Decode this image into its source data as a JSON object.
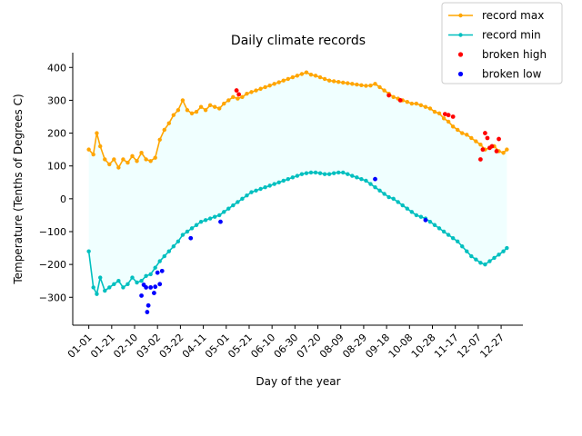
{
  "chart_data": {
    "type": "line",
    "title": "Daily climate records",
    "xlabel": "Day of the year",
    "ylabel": "Temperature (Tenths of Degrees C)",
    "xlim": [
      -14,
      379
    ],
    "ylim": [
      -385,
      445
    ],
    "y_ticks": [
      -300,
      -200,
      -100,
      0,
      100,
      200,
      300,
      400
    ],
    "x_ticks": [
      {
        "day": 0,
        "label": "01-01"
      },
      {
        "day": 20,
        "label": "01-21"
      },
      {
        "day": 40,
        "label": "02-10"
      },
      {
        "day": 60,
        "label": "03-02"
      },
      {
        "day": 80,
        "label": "03-22"
      },
      {
        "day": 100,
        "label": "04-11"
      },
      {
        "day": 120,
        "label": "05-01"
      },
      {
        "day": 140,
        "label": "05-21"
      },
      {
        "day": 160,
        "label": "06-10"
      },
      {
        "day": 180,
        "label": "06-30"
      },
      {
        "day": 200,
        "label": "07-20"
      },
      {
        "day": 220,
        "label": "08-09"
      },
      {
        "day": 240,
        "label": "08-29"
      },
      {
        "day": 260,
        "label": "09-18"
      },
      {
        "day": 280,
        "label": "10-08"
      },
      {
        "day": 300,
        "label": "10-28"
      },
      {
        "day": 320,
        "label": "11-17"
      },
      {
        "day": 340,
        "label": "12-07"
      },
      {
        "day": 360,
        "label": "12-27"
      }
    ],
    "legend_position": "top-right",
    "grid": false,
    "fill_between": {
      "color": "#f0ffff"
    },
    "series": [
      {
        "name": "record max",
        "color": "#ffa500",
        "kind": "line",
        "points": [
          [
            0,
            150
          ],
          [
            4,
            135
          ],
          [
            7,
            200
          ],
          [
            10,
            160
          ],
          [
            14,
            120
          ],
          [
            18,
            105
          ],
          [
            22,
            120
          ],
          [
            26,
            95
          ],
          [
            30,
            120
          ],
          [
            34,
            110
          ],
          [
            38,
            130
          ],
          [
            42,
            115
          ],
          [
            46,
            140
          ],
          [
            50,
            120
          ],
          [
            54,
            115
          ],
          [
            58,
            125
          ],
          [
            62,
            180
          ],
          [
            66,
            210
          ],
          [
            70,
            230
          ],
          [
            74,
            255
          ],
          [
            78,
            270
          ],
          [
            82,
            300
          ],
          [
            86,
            270
          ],
          [
            90,
            260
          ],
          [
            94,
            265
          ],
          [
            98,
            280
          ],
          [
            102,
            270
          ],
          [
            106,
            285
          ],
          [
            110,
            280
          ],
          [
            114,
            275
          ],
          [
            118,
            290
          ],
          [
            122,
            300
          ],
          [
            126,
            310
          ],
          [
            130,
            305
          ],
          [
            134,
            310
          ],
          [
            138,
            320
          ],
          [
            142,
            325
          ],
          [
            146,
            330
          ],
          [
            150,
            335
          ],
          [
            154,
            340
          ],
          [
            158,
            345
          ],
          [
            162,
            350
          ],
          [
            166,
            355
          ],
          [
            170,
            360
          ],
          [
            174,
            365
          ],
          [
            178,
            370
          ],
          [
            182,
            375
          ],
          [
            186,
            380
          ],
          [
            190,
            385
          ],
          [
            194,
            378
          ],
          [
            198,
            375
          ],
          [
            202,
            370
          ],
          [
            206,
            365
          ],
          [
            210,
            360
          ],
          [
            214,
            358
          ],
          [
            218,
            356
          ],
          [
            222,
            354
          ],
          [
            226,
            352
          ],
          [
            230,
            350
          ],
          [
            234,
            348
          ],
          [
            238,
            346
          ],
          [
            242,
            344
          ],
          [
            246,
            345
          ],
          [
            250,
            350
          ],
          [
            254,
            340
          ],
          [
            258,
            330
          ],
          [
            262,
            320
          ],
          [
            266,
            310
          ],
          [
            270,
            305
          ],
          [
            274,
            300
          ],
          [
            278,
            295
          ],
          [
            282,
            290
          ],
          [
            286,
            290
          ],
          [
            290,
            285
          ],
          [
            294,
            280
          ],
          [
            298,
            275
          ],
          [
            302,
            265
          ],
          [
            306,
            260
          ],
          [
            310,
            245
          ],
          [
            314,
            235
          ],
          [
            318,
            220
          ],
          [
            322,
            210
          ],
          [
            326,
            200
          ],
          [
            330,
            195
          ],
          [
            334,
            185
          ],
          [
            338,
            175
          ],
          [
            342,
            165
          ],
          [
            346,
            150
          ],
          [
            350,
            155
          ],
          [
            354,
            160
          ],
          [
            358,
            145
          ],
          [
            362,
            140
          ],
          [
            365,
            150
          ]
        ]
      },
      {
        "name": "record min",
        "color": "#00bfbf",
        "kind": "line",
        "points": [
          [
            0,
            -160
          ],
          [
            4,
            -270
          ],
          [
            7,
            -290
          ],
          [
            10,
            -240
          ],
          [
            14,
            -280
          ],
          [
            18,
            -270
          ],
          [
            22,
            -260
          ],
          [
            26,
            -250
          ],
          [
            30,
            -270
          ],
          [
            34,
            -260
          ],
          [
            38,
            -240
          ],
          [
            42,
            -255
          ],
          [
            46,
            -250
          ],
          [
            50,
            -235
          ],
          [
            54,
            -230
          ],
          [
            58,
            -210
          ],
          [
            62,
            -190
          ],
          [
            66,
            -175
          ],
          [
            70,
            -160
          ],
          [
            74,
            -145
          ],
          [
            78,
            -130
          ],
          [
            82,
            -110
          ],
          [
            86,
            -100
          ],
          [
            90,
            -90
          ],
          [
            94,
            -80
          ],
          [
            98,
            -70
          ],
          [
            102,
            -65
          ],
          [
            106,
            -60
          ],
          [
            110,
            -55
          ],
          [
            114,
            -50
          ],
          [
            118,
            -40
          ],
          [
            122,
            -30
          ],
          [
            126,
            -20
          ],
          [
            130,
            -10
          ],
          [
            134,
            0
          ],
          [
            138,
            10
          ],
          [
            142,
            20
          ],
          [
            146,
            25
          ],
          [
            150,
            30
          ],
          [
            154,
            35
          ],
          [
            158,
            40
          ],
          [
            162,
            45
          ],
          [
            166,
            50
          ],
          [
            170,
            55
          ],
          [
            174,
            60
          ],
          [
            178,
            65
          ],
          [
            182,
            70
          ],
          [
            186,
            75
          ],
          [
            190,
            78
          ],
          [
            194,
            80
          ],
          [
            198,
            80
          ],
          [
            202,
            78
          ],
          [
            206,
            75
          ],
          [
            210,
            75
          ],
          [
            214,
            78
          ],
          [
            218,
            80
          ],
          [
            222,
            80
          ],
          [
            226,
            75
          ],
          [
            230,
            70
          ],
          [
            234,
            65
          ],
          [
            238,
            60
          ],
          [
            242,
            55
          ],
          [
            246,
            45
          ],
          [
            250,
            35
          ],
          [
            254,
            25
          ],
          [
            258,
            15
          ],
          [
            262,
            5
          ],
          [
            266,
            0
          ],
          [
            270,
            -10
          ],
          [
            274,
            -20
          ],
          [
            278,
            -30
          ],
          [
            282,
            -40
          ],
          [
            286,
            -50
          ],
          [
            290,
            -55
          ],
          [
            294,
            -60
          ],
          [
            298,
            -70
          ],
          [
            302,
            -80
          ],
          [
            306,
            -90
          ],
          [
            310,
            -100
          ],
          [
            314,
            -110
          ],
          [
            318,
            -120
          ],
          [
            322,
            -130
          ],
          [
            326,
            -145
          ],
          [
            330,
            -160
          ],
          [
            334,
            -175
          ],
          [
            338,
            -185
          ],
          [
            342,
            -195
          ],
          [
            346,
            -200
          ],
          [
            350,
            -190
          ],
          [
            354,
            -180
          ],
          [
            358,
            -170
          ],
          [
            362,
            -160
          ],
          [
            365,
            -150
          ]
        ]
      },
      {
        "name": "broken high",
        "color": "#ff0000",
        "kind": "scatter",
        "points": [
          [
            129,
            330
          ],
          [
            131,
            318
          ],
          [
            262,
            315
          ],
          [
            272,
            300
          ],
          [
            311,
            258
          ],
          [
            314,
            255
          ],
          [
            318,
            250
          ],
          [
            342,
            120
          ],
          [
            344,
            150
          ],
          [
            346,
            200
          ],
          [
            348,
            185
          ],
          [
            350,
            155
          ],
          [
            352,
            160
          ],
          [
            356,
            145
          ],
          [
            358,
            182
          ]
        ]
      },
      {
        "name": "broken low",
        "color": "#0000ff",
        "kind": "scatter",
        "points": [
          [
            46,
            -295
          ],
          [
            48,
            -262
          ],
          [
            50,
            -270
          ],
          [
            51,
            -345
          ],
          [
            52,
            -325
          ],
          [
            54,
            -270
          ],
          [
            57,
            -287
          ],
          [
            58,
            -268
          ],
          [
            60,
            -225
          ],
          [
            62,
            -260
          ],
          [
            64,
            -220
          ],
          [
            89,
            -120
          ],
          [
            115,
            -70
          ],
          [
            250,
            60
          ],
          [
            294,
            -65
          ]
        ]
      }
    ]
  }
}
